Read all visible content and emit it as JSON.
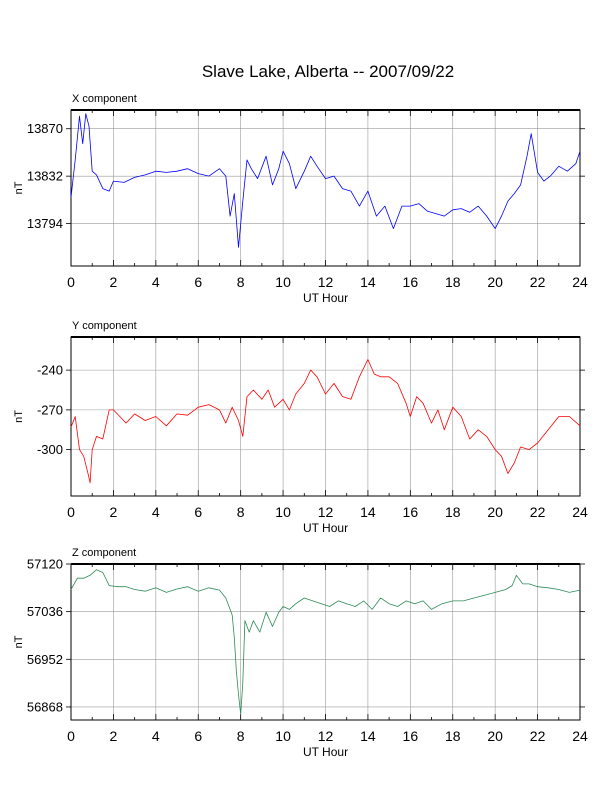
{
  "title": "Slave Lake, Alberta -- 2007/09/22",
  "chart_data": [
    {
      "type": "line",
      "panel_label": "X component",
      "title": "X component",
      "xlabel": "UT Hour",
      "ylabel": "nT",
      "xlim": [
        0,
        24
      ],
      "ylim": [
        13760,
        13885
      ],
      "x_ticks": [
        0,
        2,
        4,
        6,
        8,
        10,
        12,
        14,
        16,
        18,
        20,
        22,
        24
      ],
      "y_ticks": [
        13794,
        13832,
        13870
      ],
      "grid": true,
      "color": "#0000ff",
      "series": [
        {
          "x": [
            0,
            0.2,
            0.4,
            0.55,
            0.7,
            0.85,
            1.0,
            1.2,
            1.5,
            1.8,
            2.0,
            2.5,
            3.0,
            3.5,
            4.0,
            4.5,
            5.0,
            5.5,
            6.0,
            6.5,
            7.0,
            7.3,
            7.5,
            7.7,
            7.9,
            8.1,
            8.3,
            8.5,
            8.8,
            9.2,
            9.5,
            9.8,
            10.0,
            10.3,
            10.6,
            11.0,
            11.3,
            11.6,
            12.0,
            12.4,
            12.8,
            13.2,
            13.6,
            14.0,
            14.4,
            14.8,
            15.2,
            15.6,
            16.0,
            16.4,
            16.8,
            17.2,
            17.6,
            18.0,
            18.4,
            18.8,
            19.2,
            19.6,
            20.0,
            20.3,
            20.6,
            20.9,
            21.2,
            21.5,
            21.7,
            22.0,
            22.3,
            22.6,
            23.0,
            23.4,
            23.8,
            24.0
          ],
          "y": [
            13815,
            13845,
            13880,
            13858,
            13882,
            13872,
            13836,
            13833,
            13822,
            13820,
            13828,
            13827,
            13831,
            13833,
            13836,
            13835,
            13836,
            13838,
            13834,
            13832,
            13838,
            13832,
            13800,
            13818,
            13775,
            13812,
            13845,
            13838,
            13830,
            13848,
            13825,
            13838,
            13852,
            13842,
            13822,
            13836,
            13848,
            13840,
            13830,
            13832,
            13822,
            13820,
            13808,
            13820,
            13800,
            13808,
            13790,
            13808,
            13808,
            13810,
            13804,
            13802,
            13800,
            13805,
            13806,
            13803,
            13808,
            13800,
            13790,
            13800,
            13812,
            13818,
            13825,
            13848,
            13866,
            13835,
            13828,
            13832,
            13840,
            13836,
            13842,
            13852
          ]
        }
      ]
    },
    {
      "type": "line",
      "panel_label": "Y component",
      "title": "Y component",
      "xlabel": "UT Hour",
      "ylabel": "nT",
      "xlim": [
        0,
        24
      ],
      "ylim": [
        -335,
        -215
      ],
      "x_ticks": [
        0,
        2,
        4,
        6,
        8,
        10,
        12,
        14,
        16,
        18,
        20,
        22,
        24
      ],
      "y_ticks": [
        -300,
        -270,
        -240
      ],
      "grid": true,
      "color": "#ff0000",
      "series": [
        {
          "x": [
            0,
            0.2,
            0.4,
            0.6,
            0.8,
            0.9,
            1.0,
            1.2,
            1.5,
            1.8,
            2.0,
            2.3,
            2.6,
            3.0,
            3.5,
            4.0,
            4.5,
            5.0,
            5.5,
            6.0,
            6.5,
            7.0,
            7.3,
            7.6,
            7.9,
            8.1,
            8.3,
            8.6,
            9.0,
            9.3,
            9.6,
            10.0,
            10.3,
            10.6,
            11.0,
            11.3,
            11.6,
            12.0,
            12.4,
            12.8,
            13.2,
            13.6,
            14.0,
            14.3,
            14.6,
            15.0,
            15.4,
            15.8,
            16.0,
            16.3,
            16.6,
            17.0,
            17.3,
            17.6,
            18.0,
            18.4,
            18.8,
            19.2,
            19.6,
            20.0,
            20.3,
            20.6,
            20.9,
            21.2,
            21.6,
            22.0,
            22.5,
            23.0,
            23.5,
            24.0
          ],
          "y": [
            -283,
            -275,
            -300,
            -305,
            -318,
            -325,
            -300,
            -290,
            -292,
            -270,
            -270,
            -275,
            -280,
            -273,
            -278,
            -275,
            -282,
            -273,
            -274,
            -268,
            -266,
            -270,
            -280,
            -268,
            -278,
            -290,
            -260,
            -255,
            -262,
            -255,
            -268,
            -262,
            -270,
            -258,
            -250,
            -240,
            -245,
            -258,
            -250,
            -260,
            -262,
            -245,
            -232,
            -243,
            -245,
            -245,
            -250,
            -265,
            -275,
            -260,
            -265,
            -280,
            -270,
            -285,
            -268,
            -275,
            -292,
            -285,
            -290,
            -300,
            -305,
            -318,
            -310,
            -298,
            -300,
            -295,
            -285,
            -275,
            -275,
            -282
          ]
        }
      ]
    },
    {
      "type": "line",
      "panel_label": "Z component",
      "title": "Z component",
      "xlabel": "UT Hour",
      "ylabel": "nT",
      "xlim": [
        0,
        24
      ],
      "ylim": [
        56845,
        57120
      ],
      "x_ticks": [
        0,
        2,
        4,
        6,
        8,
        10,
        12,
        14,
        16,
        18,
        20,
        22,
        24
      ],
      "y_ticks": [
        56868,
        56952,
        57036,
        57120
      ],
      "grid": true,
      "color": "#2e8b57",
      "series": [
        {
          "x": [
            0,
            0.3,
            0.6,
            0.9,
            1.2,
            1.5,
            1.8,
            2.2,
            2.6,
            3.0,
            3.5,
            4.0,
            4.5,
            5.0,
            5.5,
            6.0,
            6.5,
            7.0,
            7.3,
            7.5,
            7.6,
            7.7,
            7.8,
            7.9,
            8.0,
            8.1,
            8.2,
            8.4,
            8.6,
            8.9,
            9.2,
            9.5,
            9.8,
            10.0,
            10.3,
            10.6,
            11.0,
            11.4,
            11.8,
            12.2,
            12.6,
            13.0,
            13.4,
            13.8,
            14.2,
            14.6,
            15.0,
            15.4,
            15.8,
            16.2,
            16.6,
            17.0,
            17.5,
            18.0,
            18.5,
            19.0,
            19.5,
            20.0,
            20.5,
            20.8,
            21.0,
            21.3,
            21.6,
            22.0,
            22.5,
            23.0,
            23.5,
            24.0
          ],
          "y": [
            57075,
            57095,
            57095,
            57100,
            57110,
            57105,
            57082,
            57080,
            57080,
            57075,
            57072,
            57078,
            57070,
            57076,
            57080,
            57072,
            57078,
            57074,
            57060,
            57040,
            57030,
            56990,
            56930,
            56890,
            56855,
            56910,
            57020,
            57000,
            57020,
            57000,
            57035,
            57010,
            57035,
            57045,
            57040,
            57050,
            57060,
            57055,
            57050,
            57045,
            57055,
            57050,
            57045,
            57055,
            57040,
            57060,
            57050,
            57045,
            57055,
            57050,
            57055,
            57040,
            57050,
            57055,
            57055,
            57060,
            57065,
            57070,
            57075,
            57082,
            57100,
            57085,
            57085,
            57080,
            57078,
            57075,
            57070,
            57074
          ]
        }
      ]
    }
  ]
}
